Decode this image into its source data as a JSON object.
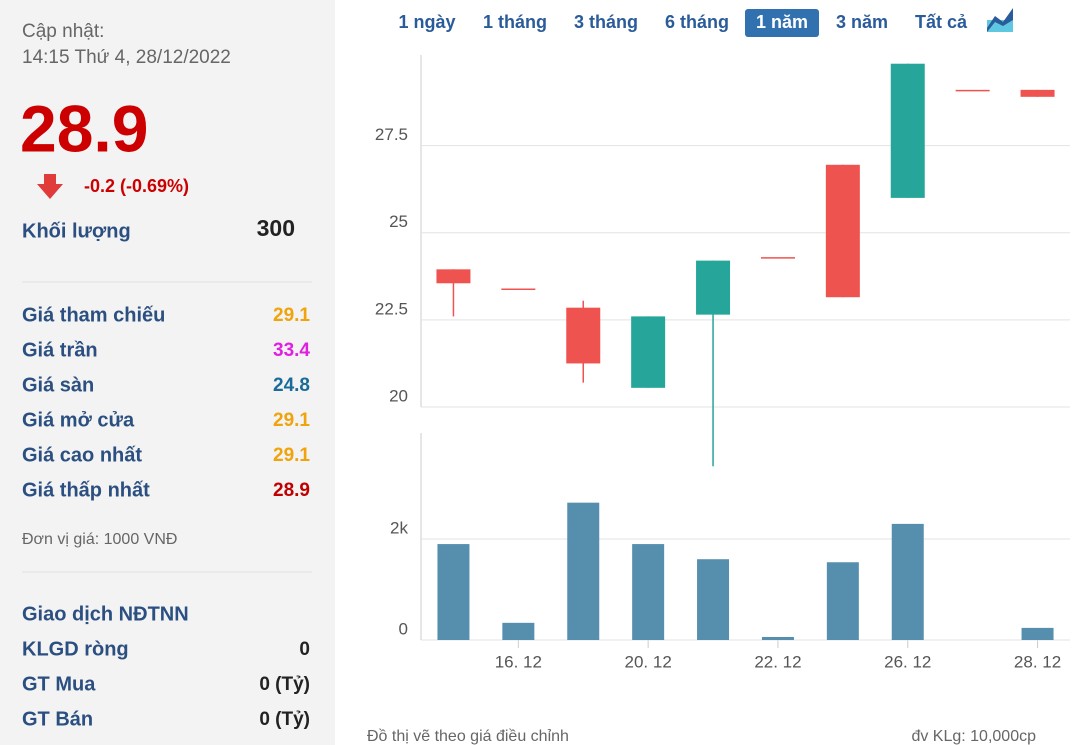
{
  "sidebar": {
    "update_label": "Cập nhật:",
    "update_time": "14:15 Thứ 4, 28/12/2022",
    "price": "28.9",
    "change": "-0.2 (-0.69%)",
    "volume_label": "Khối lượng",
    "volume": "300",
    "prices": [
      {
        "label": "Giá tham chiếu",
        "value": "29.1",
        "color": "#f0a30a"
      },
      {
        "label": "Giá trần",
        "value": "33.4",
        "color": "#e020e0"
      },
      {
        "label": "Giá sàn",
        "value": "24.8",
        "color": "#1b6b9a"
      },
      {
        "label": "Giá mở cửa",
        "value": "29.1",
        "color": "#f0a30a"
      },
      {
        "label": "Giá cao nhất",
        "value": "29.1",
        "color": "#f0a30a"
      },
      {
        "label": "Giá thấp nhất",
        "value": "28.9",
        "color": "#c00000"
      }
    ],
    "unit_note": "Đơn vị giá: 1000 VNĐ",
    "foreign": {
      "title": "Giao dịch NĐTNN",
      "rows": [
        {
          "label": "KLGD ròng",
          "value": "0"
        },
        {
          "label": "GT Mua",
          "value": "0 (Tỷ)"
        },
        {
          "label": "GT Bán",
          "value": "0 (Tỷ)"
        }
      ]
    }
  },
  "range_buttons": [
    "1 ngày",
    "1 tháng",
    "3 tháng",
    "6 tháng",
    "1 năm",
    "3 năm",
    "Tất cả"
  ],
  "chart_data": [
    {
      "type": "candlestick",
      "categories": [
        null,
        "16. 12",
        null,
        "20. 12",
        null,
        "22. 12",
        null,
        "26. 12",
        null,
        "28. 12"
      ],
      "open": [
        23.95,
        23.4,
        22.85,
        20.55,
        22.65,
        24.3,
        26.95,
        26.0,
        29.1,
        29.1
      ],
      "high": [
        23.95,
        23.4,
        23.05,
        22.6,
        24.2,
        24.3,
        26.95,
        29.85,
        29.1,
        29.1
      ],
      "low": [
        22.6,
        23.4,
        20.7,
        20.55,
        18.3,
        24.3,
        23.15,
        26.0,
        29.1,
        28.9
      ],
      "close": [
        23.55,
        23.4,
        21.25,
        22.6,
        24.2,
        24.3,
        23.15,
        29.85,
        29.1,
        28.9
      ],
      "up_color": "#26a69a",
      "down_color": "#ef5350",
      "ylim": [
        20,
        30.1
      ],
      "yticks": [
        20,
        22.5,
        25,
        27.5
      ],
      "grid": true
    },
    {
      "type": "bar",
      "values": [
        1900,
        340,
        2720,
        1900,
        1600,
        60,
        1540,
        2300,
        0,
        240
      ],
      "color": "#568fae",
      "ylim": [
        0,
        4100
      ],
      "yticks": [
        0,
        {
          "value": 2000,
          "label": "2k"
        }
      ],
      "grid": true
    }
  ],
  "footer": {
    "left": "Đồ thị vẽ theo giá điều chỉnh",
    "right": "đv KLg: 10,000cp"
  }
}
